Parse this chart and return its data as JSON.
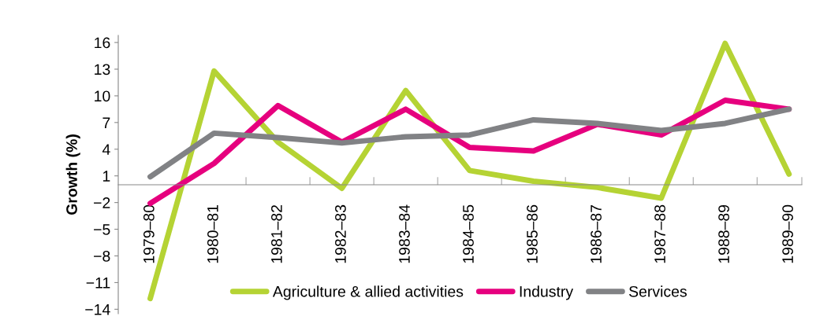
{
  "chart_data": {
    "type": "line",
    "ylabel": "Growth (%)",
    "categories": [
      "1979–80",
      "1980–81",
      "1981–82",
      "1982–83",
      "1983–84",
      "1984–85",
      "1985–86",
      "1986–87",
      "1987–88",
      "1988–89",
      "1989–90"
    ],
    "series": [
      {
        "name": "Agriculture & allied activities",
        "color": "#b5d334",
        "values": [
          -12.8,
          12.8,
          4.8,
          -0.4,
          10.6,
          1.6,
          0.4,
          -0.3,
          -1.5,
          15.9,
          1.2
        ]
      },
      {
        "name": "Industry",
        "color": "#e6007e",
        "values": [
          -2.1,
          2.4,
          8.9,
          4.8,
          8.5,
          4.2,
          3.8,
          6.8,
          5.6,
          9.5,
          8.5
        ]
      },
      {
        "name": "Services",
        "color": "#818285",
        "values": [
          0.9,
          5.8,
          5.3,
          4.7,
          5.4,
          5.6,
          7.3,
          6.9,
          6.1,
          6.9,
          8.5
        ]
      }
    ],
    "ylim": [
      -14.5,
      16.8
    ],
    "yticks": [
      -14,
      -11,
      -8,
      -5,
      -2,
      1,
      4,
      7,
      10,
      13,
      16
    ],
    "grid": false,
    "legend": "bottom",
    "marker": "none",
    "line_style": "solid"
  }
}
